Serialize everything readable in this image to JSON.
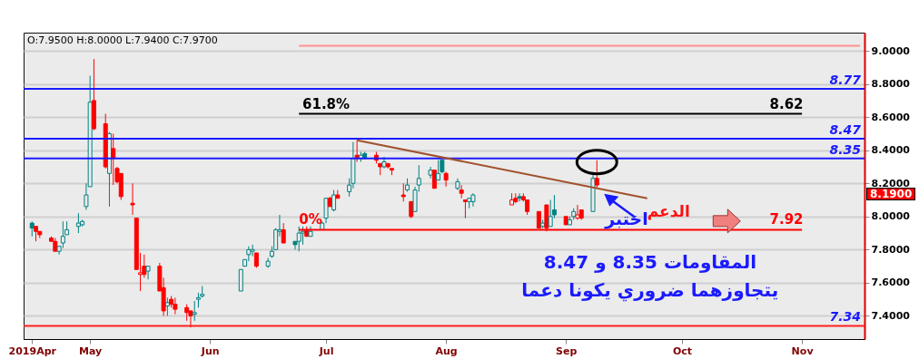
{
  "chart_data": {
    "type": "candlestick",
    "x": [
      "2019-04-16",
      "2019-04-17",
      "2019-04-18",
      "2019-04-21",
      "2019-04-22",
      "2019-04-23",
      "2019-04-24",
      "2019-04-25",
      "2019-04-28",
      "2019-04-29",
      "2019-04-30",
      "2019-05-01",
      "2019-05-02",
      "2019-05-05",
      "2019-05-06",
      "2019-05-07",
      "2019-05-08",
      "2019-05-09",
      "2019-05-12",
      "2019-05-13",
      "2019-05-14",
      "2019-05-15",
      "2019-05-16",
      "2019-05-19",
      "2019-05-20",
      "2019-05-21",
      "2019-05-22",
      "2019-05-23",
      "2019-05-26",
      "2019-05-27",
      "2019-05-28",
      "2019-05-29",
      "2019-05-30",
      "2019-06-09",
      "2019-06-10",
      "2019-06-11",
      "2019-06-12",
      "2019-06-13",
      "2019-06-16",
      "2019-06-17",
      "2019-06-18",
      "2019-06-19",
      "2019-06-20",
      "2019-06-23",
      "2019-06-24",
      "2019-06-25",
      "2019-06-26",
      "2019-06-27",
      "2019-06-30",
      "2019-07-01",
      "2019-07-02",
      "2019-07-03",
      "2019-07-04",
      "2019-07-07",
      "2019-07-08",
      "2019-07-09",
      "2019-07-10",
      "2019-07-11",
      "2019-07-14",
      "2019-07-15",
      "2019-07-16",
      "2019-07-17",
      "2019-07-18",
      "2019-07-21",
      "2019-07-22",
      "2019-07-23",
      "2019-07-24",
      "2019-07-25",
      "2019-07-28",
      "2019-07-29",
      "2019-07-30",
      "2019-07-31",
      "2019-08-01",
      "2019-08-04",
      "2019-08-05",
      "2019-08-06",
      "2019-08-07",
      "2019-08-08",
      "2019-08-18",
      "2019-08-19",
      "2019-08-20",
      "2019-08-21",
      "2019-08-22",
      "2019-08-25",
      "2019-08-26",
      "2019-08-27",
      "2019-08-28",
      "2019-08-29",
      "2019-09-01",
      "2019-09-02",
      "2019-09-03",
      "2019-09-04",
      "2019-09-05",
      "2019-09-08",
      "2019-09-09"
    ],
    "ohlc": [
      [
        7.96,
        7.97,
        7.88,
        7.93
      ],
      [
        7.94,
        7.94,
        7.85,
        7.91
      ],
      [
        7.91,
        7.91,
        7.87,
        7.89
      ],
      [
        7.87,
        7.88,
        7.85,
        7.85
      ],
      [
        7.85,
        7.87,
        7.79,
        7.79
      ],
      [
        7.79,
        7.82,
        7.77,
        7.82
      ],
      [
        7.84,
        7.97,
        7.81,
        7.88
      ],
      [
        7.89,
        7.97,
        7.89,
        7.92
      ],
      [
        7.94,
        8.02,
        7.9,
        7.96
      ],
      [
        7.95,
        7.98,
        7.94,
        7.97
      ],
      [
        8.06,
        8.2,
        8.04,
        8.13
      ],
      [
        8.18,
        8.85,
        8.18,
        8.69
      ],
      [
        8.7,
        8.95,
        8.52,
        8.53
      ],
      [
        8.56,
        8.62,
        8.29,
        8.3
      ],
      [
        8.26,
        8.51,
        8.06,
        8.5
      ],
      [
        8.41,
        8.5,
        8.19,
        8.35
      ],
      [
        8.29,
        8.3,
        8.2,
        8.21
      ],
      [
        8.26,
        8.26,
        8.1,
        8.12
      ],
      [
        8.08,
        8.2,
        8.01,
        8.07
      ],
      [
        7.99,
        7.99,
        7.68,
        7.68
      ],
      [
        7.65,
        7.78,
        7.55,
        7.66
      ],
      [
        7.7,
        7.77,
        7.63,
        7.65
      ],
      [
        7.67,
        7.7,
        7.62,
        7.7
      ],
      [
        7.7,
        7.72,
        7.55,
        7.55
      ],
      [
        7.57,
        7.63,
        7.4,
        7.43
      ],
      [
        7.46,
        7.51,
        7.4,
        7.48
      ],
      [
        7.5,
        7.52,
        7.45,
        7.47
      ],
      [
        7.47,
        7.51,
        7.41,
        7.44
      ],
      [
        7.45,
        7.47,
        7.37,
        7.42
      ],
      [
        7.43,
        7.43,
        7.33,
        7.4
      ],
      [
        7.41,
        7.49,
        7.37,
        7.42
      ],
      [
        7.5,
        7.54,
        7.45,
        7.51
      ],
      [
        7.52,
        7.58,
        7.51,
        7.53
      ],
      [
        7.55,
        7.68,
        7.55,
        7.68
      ],
      [
        7.7,
        7.74,
        7.7,
        7.74
      ],
      [
        7.77,
        7.82,
        7.73,
        7.8
      ],
      [
        7.79,
        7.83,
        7.76,
        7.8
      ],
      [
        7.78,
        7.78,
        7.69,
        7.7
      ],
      [
        7.7,
        7.75,
        7.69,
        7.73
      ],
      [
        7.76,
        7.82,
        7.75,
        7.79
      ],
      [
        7.8,
        7.93,
        7.8,
        7.92
      ],
      [
        7.91,
        8.01,
        7.88,
        7.92
      ],
      [
        7.92,
        7.96,
        7.84,
        7.84
      ],
      [
        7.85,
        7.85,
        7.8,
        7.83
      ],
      [
        7.85,
        7.94,
        7.79,
        7.9
      ],
      [
        7.9,
        7.94,
        7.83,
        7.91
      ],
      [
        7.92,
        7.94,
        7.88,
        7.88
      ],
      [
        7.88,
        7.94,
        7.88,
        7.91
      ],
      [
        7.92,
        7.97,
        7.92,
        7.96
      ],
      [
        7.99,
        8.11,
        7.96,
        8.11
      ],
      [
        8.11,
        8.12,
        8.06,
        8.06
      ],
      [
        8.04,
        8.16,
        8.03,
        8.13
      ],
      [
        8.13,
        8.16,
        8.11,
        8.11
      ],
      [
        8.15,
        8.23,
        8.12,
        8.19
      ],
      [
        8.2,
        8.45,
        8.17,
        8.35
      ],
      [
        8.37,
        8.46,
        8.33,
        8.35
      ],
      [
        8.35,
        8.39,
        8.33,
        8.37
      ],
      [
        8.38,
        8.39,
        8.35,
        8.35
      ],
      [
        8.37,
        8.39,
        8.32,
        8.34
      ],
      [
        8.32,
        8.32,
        8.25,
        8.3
      ],
      [
        8.3,
        8.36,
        8.29,
        8.33
      ],
      [
        8.32,
        8.32,
        8.29,
        8.3
      ],
      [
        8.29,
        8.29,
        8.25,
        8.28
      ],
      [
        8.13,
        8.2,
        8.09,
        8.12
      ],
      [
        8.16,
        8.23,
        8.15,
        8.19
      ],
      [
        8.09,
        8.09,
        7.99,
        8.0
      ],
      [
        8.03,
        8.18,
        8.03,
        8.16
      ],
      [
        8.19,
        8.31,
        8.15,
        8.23
      ],
      [
        8.25,
        8.3,
        8.23,
        8.28
      ],
      [
        8.28,
        8.28,
        8.17,
        8.17
      ],
      [
        8.22,
        8.34,
        8.22,
        8.26
      ],
      [
        8.34,
        8.34,
        8.26,
        8.27
      ],
      [
        8.26,
        8.27,
        8.18,
        8.22
      ],
      [
        8.17,
        8.23,
        8.16,
        8.21
      ],
      [
        8.16,
        8.19,
        8.11,
        8.14
      ],
      [
        8.1,
        8.1,
        7.99,
        8.09
      ],
      [
        8.09,
        8.11,
        8.05,
        8.11
      ],
      [
        8.09,
        8.14,
        8.06,
        8.13
      ],
      [
        8.07,
        8.14,
        8.07,
        8.1
      ],
      [
        8.11,
        8.14,
        8.08,
        8.09
      ],
      [
        8.12,
        8.14,
        8.09,
        8.11
      ],
      [
        8.12,
        8.14,
        8.09,
        8.1
      ],
      [
        8.1,
        8.1,
        8.01,
        8.03
      ],
      [
        8.03,
        8.03,
        7.93,
        7.93
      ],
      [
        7.94,
        7.98,
        7.93,
        7.96
      ],
      [
        8.07,
        8.07,
        7.91,
        7.93
      ],
      [
        7.94,
        8.1,
        7.94,
        8.0
      ],
      [
        8.04,
        8.13,
        7.99,
        8.01
      ],
      [
        8.0,
        8.0,
        7.95,
        7.95
      ],
      [
        7.95,
        8.0,
        7.95,
        7.98
      ],
      [
        8.0,
        8.05,
        7.98,
        8.03
      ],
      [
        7.99,
        8.07,
        7.98,
        8.01
      ],
      [
        8.04,
        8.04,
        7.98,
        7.99
      ],
      [
        8.03,
        8.25,
        8.03,
        8.23
      ],
      [
        8.23,
        8.34,
        8.17,
        8.19
      ]
    ],
    "colors": [
      "#008080",
      "#ff0000",
      "#ff0000",
      "#ff0000",
      "#ff0000",
      "#008080",
      "#008080",
      "#008080",
      "#008080",
      "#008080",
      "#008080",
      "#008080",
      "#ff0000",
      "#ff0000",
      "#008080",
      "#ff0000",
      "#ff0000",
      "#ff0000",
      "#ff0000",
      "#ff0000",
      "#ff0000",
      "#ff0000",
      "#008080",
      "#ff0000",
      "#ff0000",
      "#008080",
      "#ff0000",
      "#ff0000",
      "#ff0000",
      "#ff0000",
      "#008080",
      "#008080",
      "#008080",
      "#008080",
      "#008080",
      "#008080",
      "#008080",
      "#ff0000",
      "#008080",
      "#008080",
      "#008080",
      "#008080",
      "#ff0000",
      "#008080",
      "#008080",
      "#008080",
      "#ff0000",
      "#008080",
      "#008080",
      "#008080",
      "#ff0000",
      "#008080",
      "#ff0000",
      "#008080",
      "#008080",
      "#ff0000",
      "#008080",
      "#008080",
      "#ff0000",
      "#ff0000",
      "#008080",
      "#ff0000",
      "#ff0000",
      "#ff0000",
      "#008080",
      "#ff0000",
      "#008080",
      "#008080",
      "#008080",
      "#ff0000",
      "#008080",
      "#008080",
      "#ff0000",
      "#008080",
      "#ff0000",
      "#ff0000",
      "#008080",
      "#008080",
      "#ff0000",
      "#ff0000",
      "#008080",
      "#ff0000",
      "#ff0000",
      "#ff0000",
      "#008080",
      "#ff0000",
      "#008080",
      "#008080",
      "#ff0000",
      "#008080",
      "#008080",
      "#ff0000",
      "#ff0000",
      "#008080",
      "#ff0000"
    ],
    "series": [
      {
        "type": "line",
        "color": "#a0522d",
        "x": [
          "2019-07-09",
          "2019-09-22"
        ],
        "values": [
          8.46,
          8.11
        ]
      },
      {
        "type": "line",
        "color": "#000000",
        "x": [
          "2019-06-24",
          "2019-11-01"
        ],
        "values": [
          8.62,
          8.62
        ]
      },
      {
        "type": "line",
        "color": "#ff0000",
        "x": [
          "2019-06-24",
          "2019-11-01"
        ],
        "values": [
          7.92,
          7.92
        ]
      },
      {
        "type": "line",
        "color": "#ff9090",
        "x": [
          "2019-06-24",
          "2019-11-16"
        ],
        "values": [
          9.03,
          9.03
        ]
      }
    ],
    "ref_lines": [
      {
        "axis": "y",
        "value": 8.77,
        "label": "8.77",
        "color": "#1a1aff"
      },
      {
        "axis": "y",
        "value": 8.47,
        "label": "8.47",
        "color": "#1a1aff"
      },
      {
        "axis": "y",
        "value": 8.35,
        "label": "8.35",
        "color": "#1a1aff"
      },
      {
        "axis": "y",
        "value": 7.34,
        "label": "7.34",
        "color": "#ff2020"
      }
    ],
    "annotations": [
      "O:7.9500 H:8.0000 L:7.9400 C:7.9700",
      {
        "text": "61.8%",
        "x": "2019-07-01",
        "y": 8.62
      },
      {
        "text": "8.62",
        "x": "2019-10-28",
        "y": 8.62
      },
      {
        "text": "0%",
        "x": "2019-06-27",
        "y": 7.92
      },
      {
        "text": "7.92",
        "x": "2019-10-28",
        "y": 7.92
      },
      "الدعم",
      "اختبر",
      "المقاومات 8.35 و 8.47",
      "يتجاوزهما ضروري يكونا دعما",
      "8.1900"
    ],
    "xlim": [
      "2019-04-15",
      "2019-11-16"
    ],
    "xticks": [
      {
        "value": "2019-04-16",
        "label": "2019Apr"
      },
      {
        "value": "2019-05-01",
        "label": "May"
      },
      {
        "value": "2019-06-01",
        "label": "Jun"
      },
      {
        "value": "2019-07-01",
        "label": "Jul"
      },
      {
        "value": "2019-08-01",
        "label": "Aug"
      },
      {
        "value": "2019-09-01",
        "label": "Sep"
      },
      {
        "value": "2019-10-01",
        "label": "Oct"
      },
      {
        "value": "2019-11-01",
        "label": "Nov"
      }
    ],
    "ylim": [
      7.26,
      9.11
    ],
    "yticks": [
      {
        "value": 7.4,
        "label": "7.4000"
      },
      {
        "value": 7.6,
        "label": "7.6000"
      },
      {
        "value": 7.8,
        "label": "7.8000"
      },
      {
        "value": 8.0,
        "label": "8.0000"
      },
      {
        "value": 8.2,
        "label": "8.2000"
      },
      {
        "value": 8.4,
        "label": "8.4000"
      },
      {
        "value": 8.6,
        "label": "8.6000"
      },
      {
        "value": 8.8,
        "label": "8.8000"
      },
      {
        "value": 9.0,
        "label": "9.0000"
      }
    ],
    "grid": "y"
  }
}
